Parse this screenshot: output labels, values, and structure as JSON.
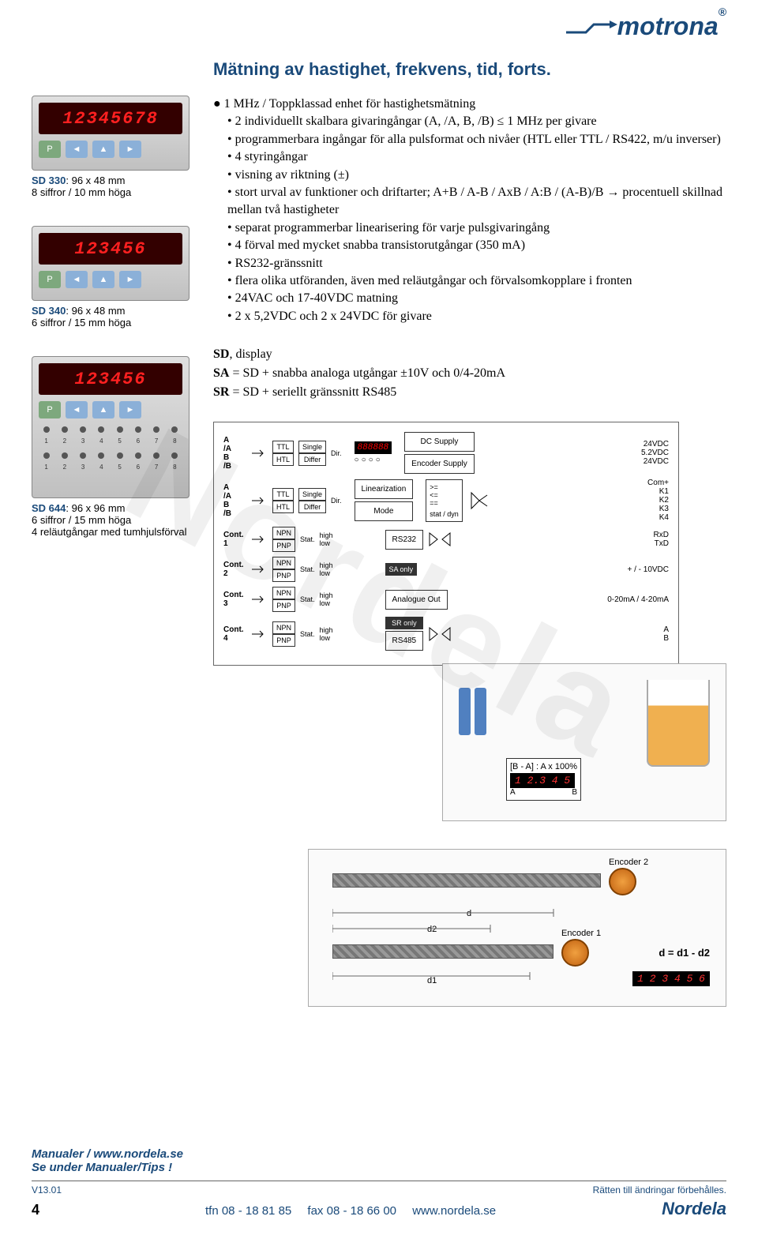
{
  "logo": {
    "text": "motrona",
    "reg": "®"
  },
  "title": "Mätning av hastighet, frekvens, tid, forts.",
  "products": [
    {
      "model": "SD 330",
      "dims": ": 96 x 48 mm",
      "line2": "8 siffror / 10 mm höga",
      "display": "12345678"
    },
    {
      "model": "SD 340",
      "dims": ": 96 x 48 mm",
      "line2": "6 siffror / 15 mm höga",
      "display": "123456"
    },
    {
      "model": "SD 644",
      "dims": ": 96 x 96 mm",
      "line2": "6 siffror / 15 mm höga",
      "line3": "4 reläutgångar med tumhjulsförval",
      "display": "123456"
    }
  ],
  "heading": "1 MHz / Toppklassad enhet för hastighetsmätning",
  "bullets": [
    "2 individuellt skalbara givaringångar (A, /A, B, /B) ≤ 1 MHz per givare",
    "programmerbara ingångar för alla pulsformat och nivåer (HTL eller TTL / RS422, m/u inverser)",
    "4 styringångar",
    "visning av riktning (±)",
    "stort urval av funktioner och driftarter; A+B / A-B / AxB / A:B / (A-B)/B → procentuell skillnad mellan två hastigheter",
    "separat programmerbar linearisering för varje pulsgivaringång",
    "4 förval med mycket snabba transistorutgångar (350 mA)",
    "RS232-gränssnitt",
    "flera olika utföranden, även med reläutgångar och förvalsomkopplare i fronten",
    "24VAC och 17-40VDC matning",
    "2 x 5,2VDC och 2 x 24VDC för givare"
  ],
  "sd_desc": {
    "l1a": "SD",
    "l1b": ", display",
    "l2a": "SA",
    "l2b": " = SD + snabba analoga utgångar ±10V och 0/4-20mA",
    "l3a": "SR",
    "l3b": " = SD + seriellt gränssnitt RS485"
  },
  "diagram": {
    "pins_ab": [
      "A",
      "/A",
      "B",
      "/B"
    ],
    "ttl": "TTL",
    "htl": "HTL",
    "single": "Single",
    "differ": "Differ",
    "dir": "Dir.",
    "digits": "888888",
    "dc_supply": "DC Supply",
    "encoder_supply": "Encoder Supply",
    "linearization": "Linearization",
    "mode": "Mode",
    "ops": [
      ">=",
      "<=",
      "=="
    ],
    "statdyn": "stat / dyn",
    "cont": [
      "Cont. 1",
      "Cont. 2",
      "Cont. 3",
      "Cont. 4"
    ],
    "npn": "NPN",
    "pnp": "PNP",
    "stat": "Stat.",
    "high": "high",
    "low": "low",
    "rs232": "RS232",
    "sa_only": "SA only",
    "analogue_out": "Analogue Out",
    "sr_only": "SR only",
    "rs485": "RS485",
    "out_24v": "24VDC",
    "out_52v": "5.2VDC",
    "out_24v2": "24VDC",
    "out_com": "Com+",
    "out_k": [
      "K1",
      "K2",
      "K3",
      "K4"
    ],
    "out_rxtx": [
      "RxD",
      "TxD"
    ],
    "out_analog": [
      "+ / - 10VDC",
      "0-20mA / 4-20mA"
    ],
    "out_ab": [
      "A",
      "B"
    ]
  },
  "app1": {
    "formula": "[B - A] : A x 100%",
    "display": "1 2.3 4 5",
    "a": "A",
    "b": "B"
  },
  "app2": {
    "enc1": "Encoder 1",
    "enc2": "Encoder 2",
    "d": "d",
    "d1": "d1",
    "d2": "d2",
    "formula": "d = d1 - d2",
    "display": "1 2 3 4 5 6"
  },
  "footer": {
    "manual1": "Manualer / www.nordela.se",
    "manual2": "Se under Manualer/Tips !",
    "version": "V13.01",
    "rights": "Rätten till ändringar förbehålles.",
    "page": "4",
    "tfn": "tfn 08 - 18 81 85",
    "fax": "fax 08 - 18 66 00",
    "url": "www.nordela.se",
    "brand": "Nordela"
  },
  "watermark": "Nordela"
}
